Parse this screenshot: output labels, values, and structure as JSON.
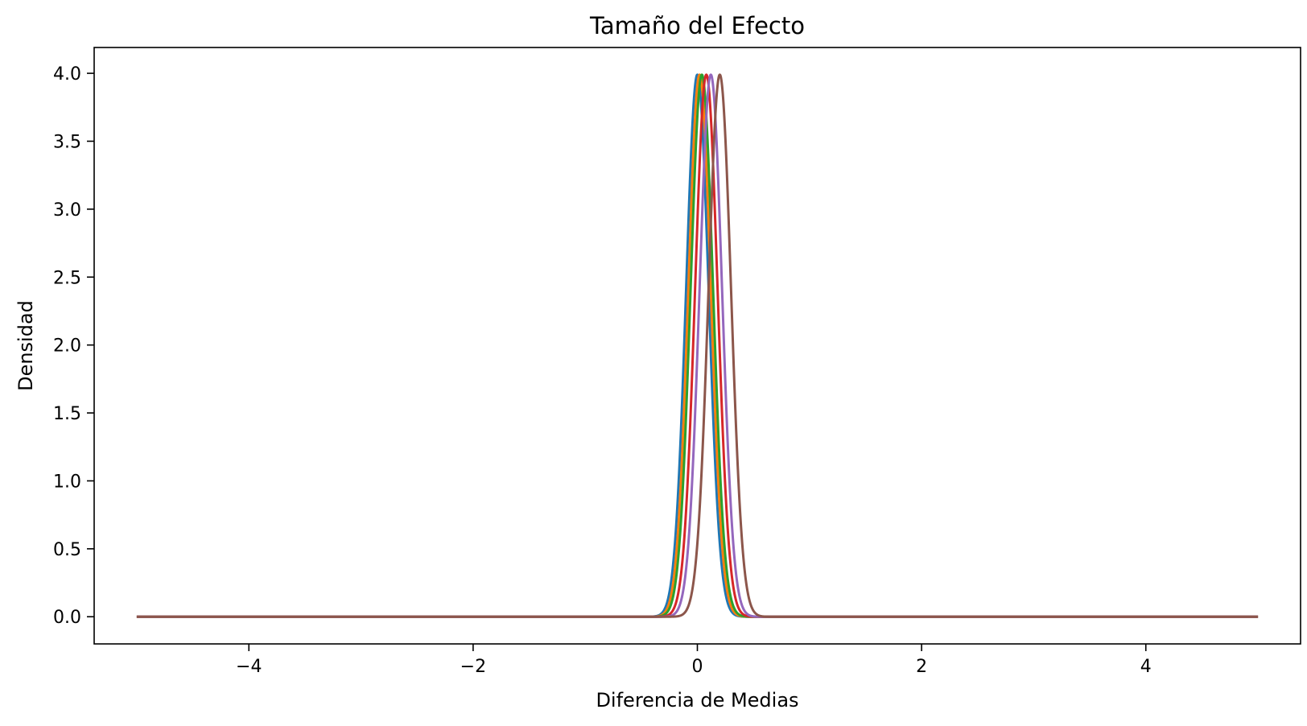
{
  "chart_data": {
    "type": "line",
    "title": "Tamaño del Efecto",
    "xlabel": "Diferencia de Medias",
    "ylabel": "Densidad",
    "xlim": [
      -5.38,
      5.38
    ],
    "ylim": [
      -0.2,
      4.19
    ],
    "xticks": [
      -4,
      -2,
      0,
      2,
      4
    ],
    "xtick_labels": [
      "−4",
      "−2",
      "0",
      "2",
      "4"
    ],
    "yticks": [
      0.0,
      0.5,
      1.0,
      1.5,
      2.0,
      2.5,
      3.0,
      3.5,
      4.0
    ],
    "ytick_labels": [
      "0.0",
      "0.5",
      "1.0",
      "1.5",
      "2.0",
      "2.5",
      "3.0",
      "3.5",
      "4.0"
    ],
    "grid": false,
    "legend": "none",
    "x_range": [
      -5,
      5
    ],
    "series": [
      {
        "distribution": "normal",
        "mean": 0.0,
        "sd": 0.1,
        "peak": 3.99,
        "color": "#1f77b4"
      },
      {
        "distribution": "normal",
        "mean": 0.02,
        "sd": 0.1,
        "peak": 3.99,
        "color": "#ff7f0e"
      },
      {
        "distribution": "normal",
        "mean": 0.04,
        "sd": 0.1,
        "peak": 3.99,
        "color": "#2ca02c"
      },
      {
        "distribution": "normal",
        "mean": 0.08,
        "sd": 0.1,
        "peak": 3.99,
        "color": "#d62728"
      },
      {
        "distribution": "normal",
        "mean": 0.12,
        "sd": 0.1,
        "peak": 3.99,
        "color": "#9467bd"
      },
      {
        "distribution": "normal",
        "mean": 0.2,
        "sd": 0.1,
        "peak": 3.99,
        "color": "#8c564b"
      }
    ]
  }
}
